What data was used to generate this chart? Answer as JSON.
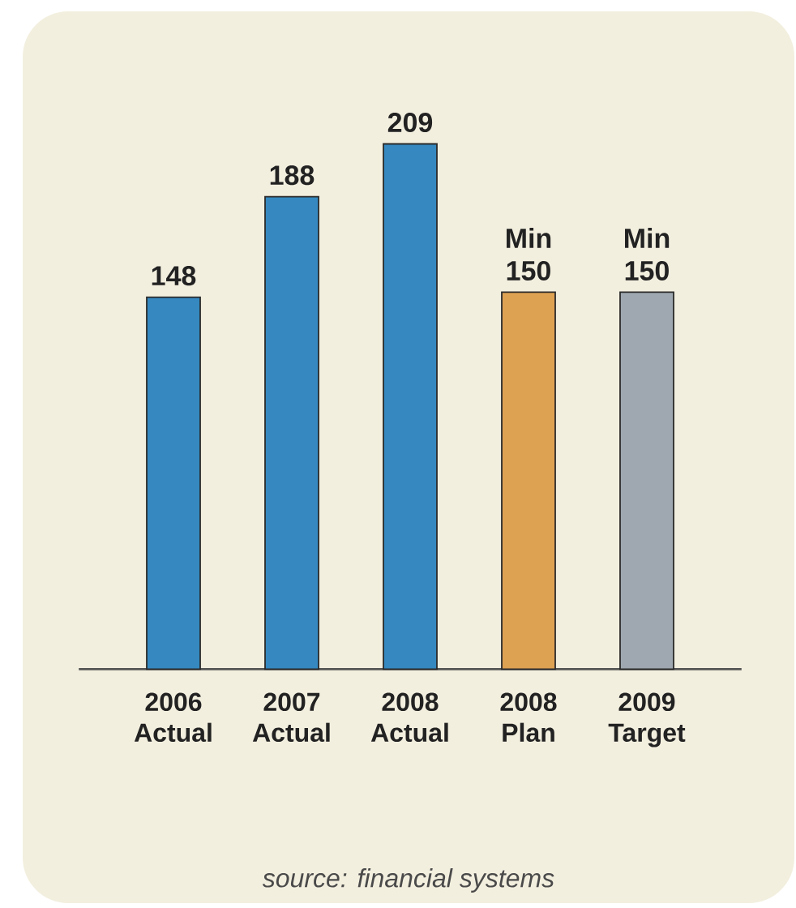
{
  "chart_data": {
    "type": "bar",
    "categories": [
      "2006 Actual",
      "2007 Actual",
      "2008 Actual",
      "2008 Plan",
      "2009 Target"
    ],
    "values": [
      148,
      188,
      209,
      150,
      150
    ],
    "colors": [
      "#3589c0",
      "#3589c0",
      "#3589c0",
      "#dea253",
      "#9fa8b0"
    ],
    "value_labels": [
      "148",
      "188",
      "209",
      "Min 150",
      "Min 150"
    ],
    "tick_labels": "x",
    "annotations": [
      "source: financial systems"
    ]
  }
}
